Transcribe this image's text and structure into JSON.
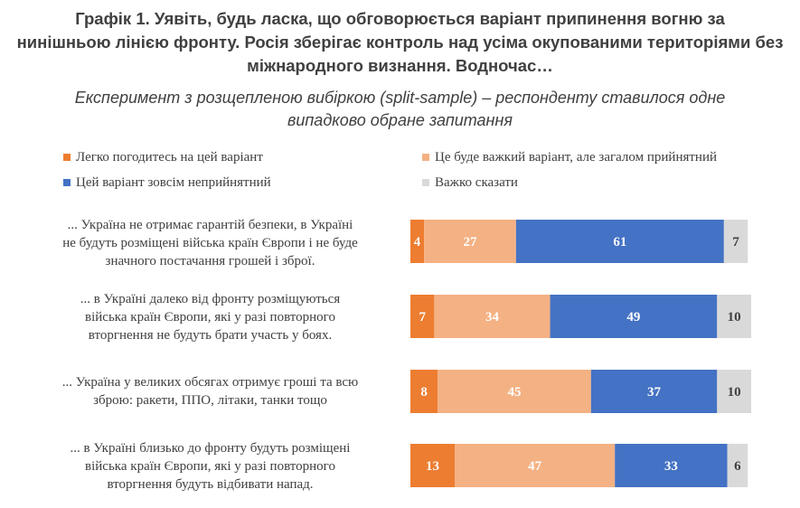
{
  "title_lines": [
    "Графік 1. Уявіть, будь ласка, що обговорюється варіант припинення вогню за",
    "нинішньою лінією фронту. Росія зберігає контроль над усіма окупованими територіями без",
    "міжнародного визнання. Водночас…"
  ],
  "subtitle_lines": [
    "Експеримент з розщепленою вибіркою (split-sample) – респонденту ставилося одне",
    "випадково обране запитання"
  ],
  "chart_data": {
    "type": "bar",
    "orientation": "horizontal",
    "stacked": true,
    "legend_position": "top",
    "grid": false,
    "xlim": [
      0,
      100
    ],
    "series": [
      {
        "name": "Легко погодитесь на цей варіант",
        "color": "#ED7D31",
        "label_color": "#FFFFFF",
        "values": [
          4,
          7,
          8,
          13
        ]
      },
      {
        "name": "Це буде важкий варіант, але загалом прийнятний",
        "color": "#F4B183",
        "label_color": "#FFFFFF",
        "values": [
          27,
          34,
          45,
          47
        ]
      },
      {
        "name": "Цей варіант зовсім неприйнятний",
        "color": "#4472C4",
        "label_color": "#FFFFFF",
        "values": [
          61,
          49,
          37,
          33
        ]
      },
      {
        "name": "Важко сказати",
        "color": "#D9D9D9",
        "label_color": "#404040",
        "values": [
          7,
          10,
          10,
          6
        ]
      }
    ],
    "categories": [
      [
        "... Україна не отримає гарантій безпеки, в Україні",
        "не будуть розміщені війська країн Європи і не буде",
        "значного постачання грошей і зброї."
      ],
      [
        "... в Україні далеко від фронту розміщуються",
        "війська країн Європи, які у разі повторного",
        "вторгнення не будуть брати участь у боях."
      ],
      [
        "... Україна у великих обсягах отримує гроші та всю",
        "зброю: ракети, ППО, літаки, танки тощо"
      ],
      [
        "... в Україні близько до фронту будуть розміщені",
        "війська країн Європи, які у разі повторного",
        "вторгнення будуть відбивати напад."
      ]
    ]
  }
}
